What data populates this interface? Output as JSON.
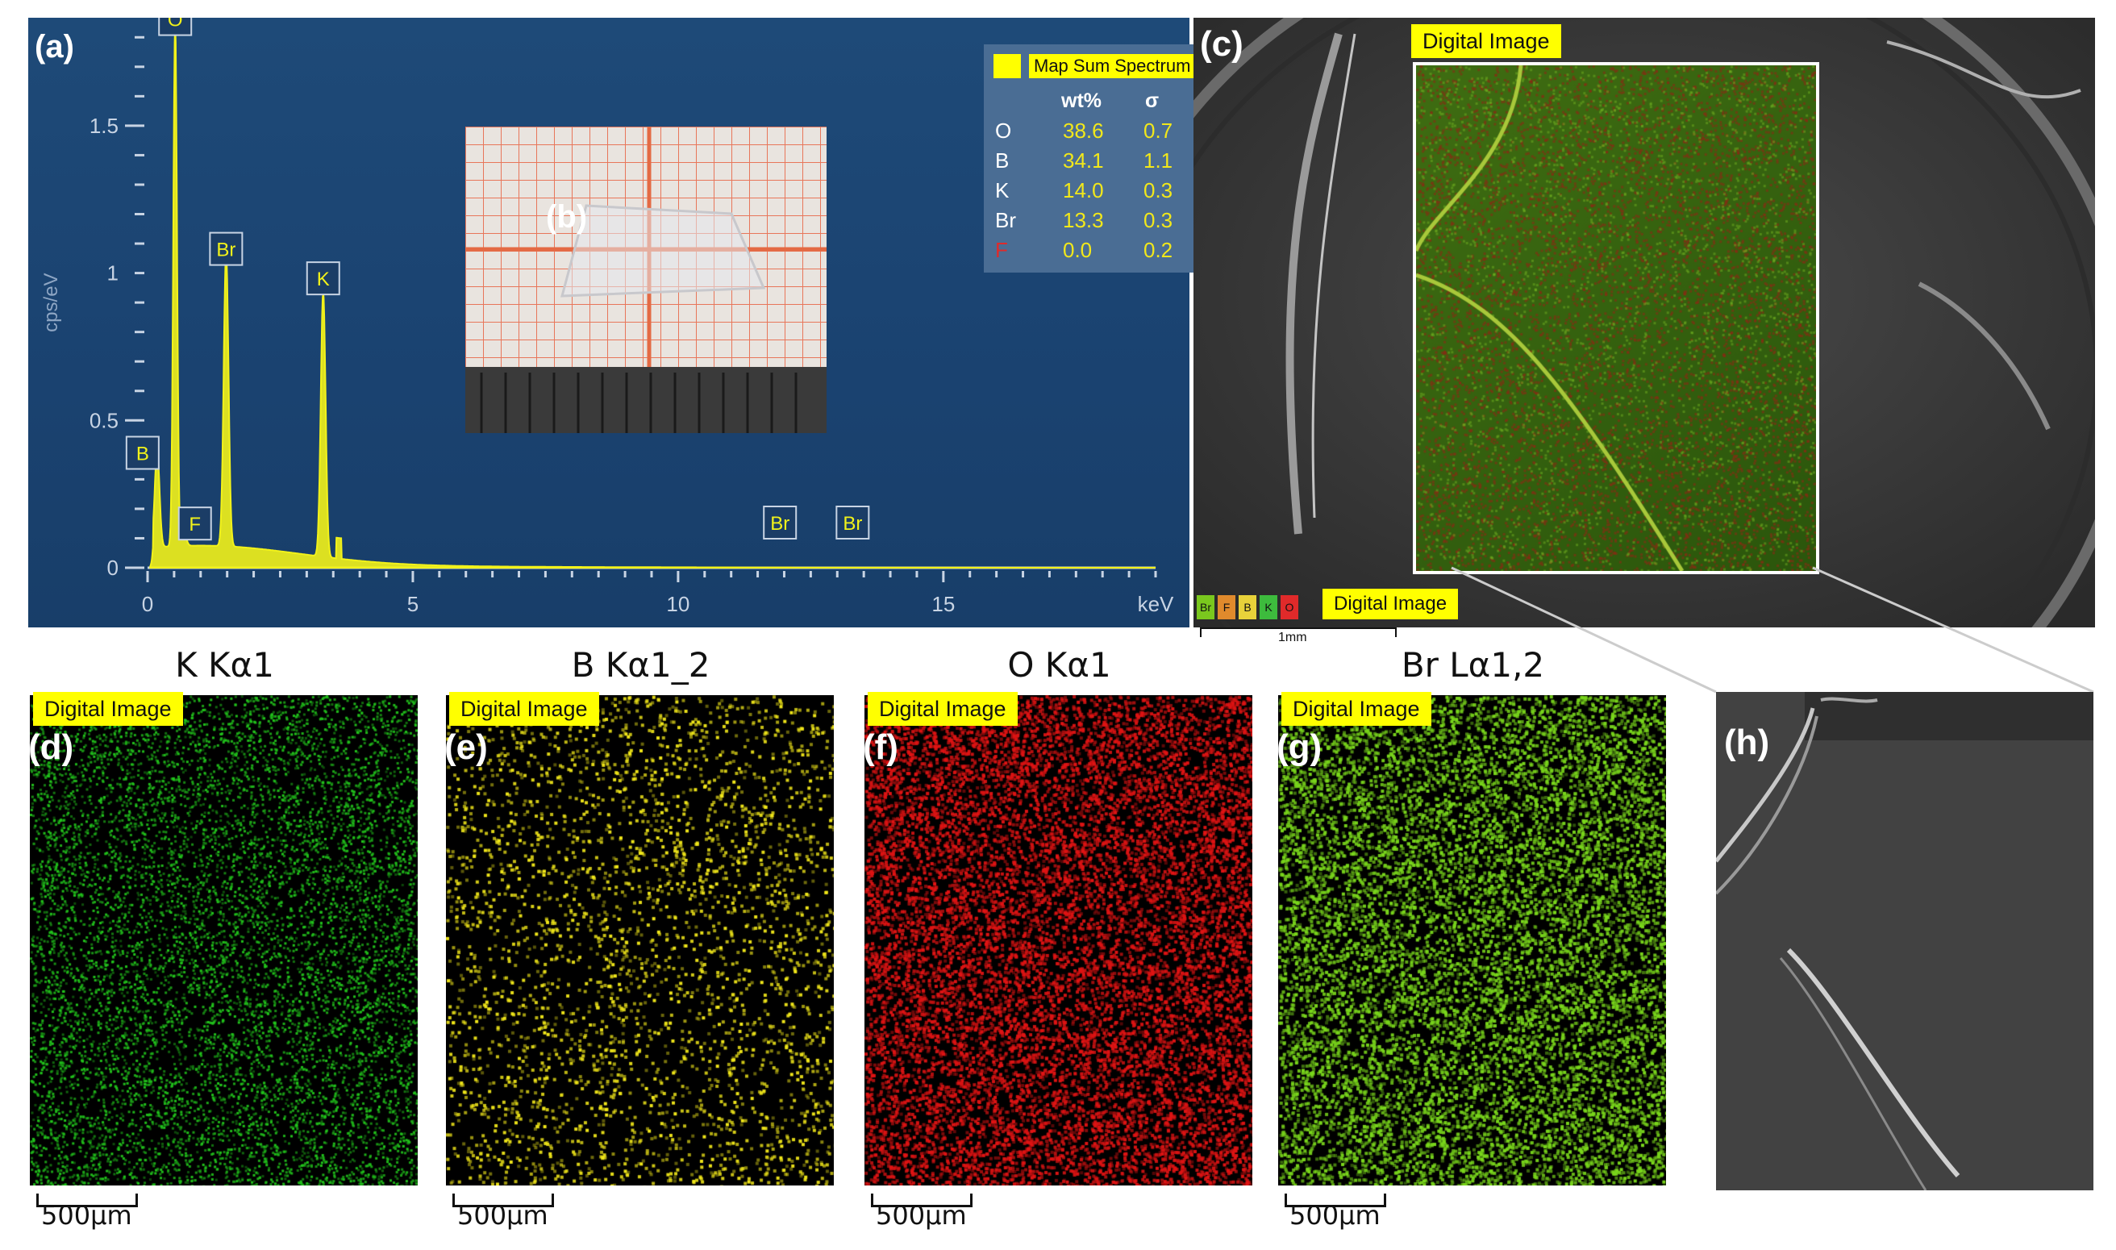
{
  "panel_a": {
    "label": "(a)",
    "ylabel": "cps/eV",
    "xlabel": "keV",
    "xticks": [
      "0",
      "5",
      "10",
      "15"
    ],
    "yticks": [
      "0",
      "0.5",
      "1",
      "1.5"
    ],
    "peak_labels": [
      "O",
      "Br",
      "K",
      "B",
      "F",
      "Br",
      "Br"
    ],
    "legend": {
      "title": "Map Sum Spectrum",
      "col_wt": "wt%",
      "col_sigma": "σ",
      "rows": [
        {
          "el": "O",
          "wt": "38.6",
          "s": "0.7"
        },
        {
          "el": "B",
          "wt": "34.1",
          "s": "1.1"
        },
        {
          "el": "K",
          "wt": "14.0",
          "s": "0.3"
        },
        {
          "el": "Br",
          "wt": "13.3",
          "s": "0.3"
        },
        {
          "el": "F",
          "wt": "0.0",
          "s": "0.2"
        }
      ]
    }
  },
  "chart_data": {
    "type": "line",
    "xlabel": "keV",
    "ylabel": "cps/eV",
    "xlim": [
      0,
      19
    ],
    "ylim": [
      0,
      1.85
    ],
    "x": [
      0.18,
      0.52,
      0.68,
      1.48,
      3.31,
      11.92,
      13.29
    ],
    "y": [
      0.33,
      1.78,
      0.05,
      1.0,
      0.9,
      0.0,
      0.0
    ],
    "peaks": [
      {
        "label": "B",
        "x": 0.18,
        "y": 0.33
      },
      {
        "label": "O",
        "x": 0.52,
        "y": 1.78
      },
      {
        "label": "F",
        "x": 0.68,
        "y": 0.05
      },
      {
        "label": "Br",
        "x": 1.48,
        "y": 1.0
      },
      {
        "label": "K",
        "x": 3.31,
        "y": 0.9
      },
      {
        "label": "Br",
        "x": 11.92,
        "y": 0.0
      },
      {
        "label": "Br",
        "x": 13.29,
        "y": 0.0
      }
    ],
    "grid": false
  },
  "panel_b": {
    "label": "(b)"
  },
  "panel_c": {
    "label": "(c)",
    "tag_top": "Digital Image",
    "tag_bottom": "Digital Image",
    "chips": [
      "Br",
      "F",
      "B",
      "K",
      "O"
    ],
    "chip_colors": [
      "#7ac81e",
      "#e08a2c",
      "#e8d23a",
      "#3dbb3d",
      "#e02a2a"
    ],
    "scale": "1mm"
  },
  "maps": [
    {
      "label": "(d)",
      "title": "K Kα1",
      "tag": "Digital Image",
      "scale": "500µm",
      "color": "#22c41c"
    },
    {
      "label": "(e)",
      "title": "B Kα1_2",
      "tag": "Digital Image",
      "scale": "500µm",
      "color": "#f2e81a"
    },
    {
      "label": "(f)",
      "title": "O Kα1",
      "tag": "Digital Image",
      "scale": "500µm",
      "color": "#e01414"
    },
    {
      "label": "(g)",
      "title": "Br Lα1,2",
      "tag": "Digital Image",
      "scale": "500µm",
      "color": "#7ad71c"
    }
  ],
  "panel_h": {
    "label": "(h)"
  }
}
